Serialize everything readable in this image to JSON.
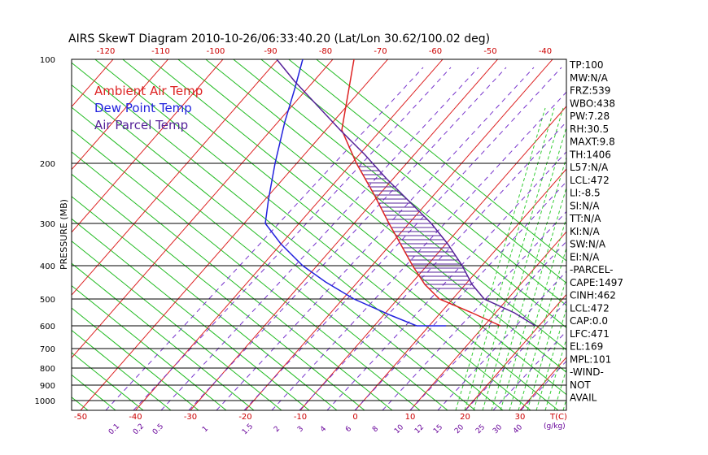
{
  "chart_data": {
    "type": "line",
    "title": "AIRS SkewT Diagram 2010-10-26/06:33:40.20 (Lat/Lon 30.62/100.02 deg)",
    "ylabel": "PRESSURE (MB)",
    "pressure_ticks": [
      100,
      200,
      300,
      400,
      500,
      600,
      700,
      800,
      900,
      1000
    ],
    "top_temp_ticks": [
      -120,
      -110,
      -100,
      -90,
      -80,
      -70,
      -60,
      -50,
      -40
    ],
    "bottom_temp_ticks": [
      -50,
      -40,
      -30,
      -20,
      -10,
      0,
      10,
      20,
      30
    ],
    "bottom_temp_unit": "T(C)",
    "mixing_ratio_labels": [
      "0.1",
      "0.2",
      "0.5",
      "1",
      "1.5",
      "2",
      "3",
      "4",
      "6",
      "8",
      "10",
      "12",
      "15",
      "20",
      "25",
      "30",
      "40"
    ],
    "mixing_ratio_unit": "(g/kg)",
    "series": [
      {
        "name": "Ambient Air Temp",
        "color": "#dd2222"
      },
      {
        "name": "Dew Point Temp",
        "color": "#2222dd"
      },
      {
        "name": "Air Parcel Temp",
        "color": "#552299"
      }
    ],
    "indices": [
      "TP:100",
      "MW:N/A",
      "FRZ:539",
      "WBO:438",
      "PW:7.28",
      "RH:30.5",
      "MAXT:9.8",
      "TH:1406",
      "L57:N/A",
      "LCL:472",
      "LI:-8.5",
      "SI:N/A",
      "TT:N/A",
      "KI:N/A",
      "SW:N/A",
      "EI:N/A",
      "-PARCEL-",
      "CAPE:1497",
      "CINH:462",
      "LCL:472",
      "CAP:0.0",
      "LFC:471",
      "EL:169",
      "MPL:101",
      "-WIND-",
      "NOT",
      "AVAIL"
    ]
  }
}
